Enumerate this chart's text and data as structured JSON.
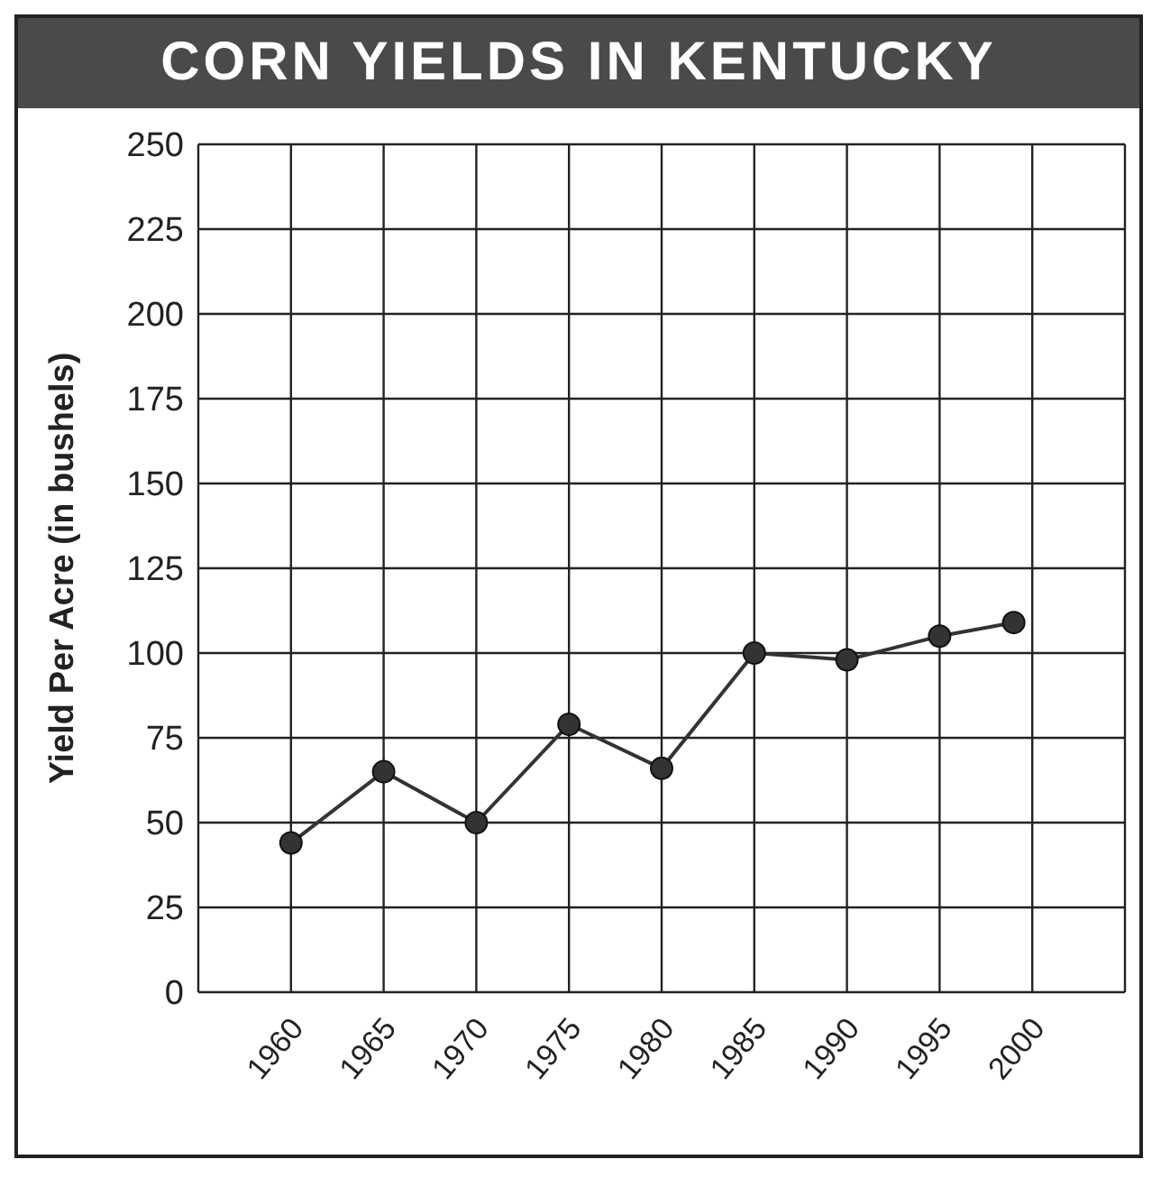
{
  "chart_data": {
    "type": "line",
    "title": "CORN YIELDS IN KENTUCKY",
    "ylabel": "Yield Per Acre  (in bushels)",
    "x": [
      1960,
      1965,
      1970,
      1975,
      1980,
      1985,
      1990,
      1995,
      1999
    ],
    "series": [
      {
        "color": "#333333",
        "values": [
          44,
          65,
          50,
          79,
          66,
          100,
          98,
          105,
          109
        ]
      }
    ],
    "xlim": [
      1955,
      2005
    ],
    "xticks": [
      1960,
      1965,
      1970,
      1975,
      1980,
      1985,
      1990,
      1995,
      2000
    ],
    "ylim": [
      0,
      250
    ],
    "yticks": [
      0,
      25,
      50,
      75,
      100,
      125,
      150,
      175,
      200,
      225,
      250
    ],
    "grid": true,
    "marker": "circle",
    "line_style": "solid",
    "legend": false
  }
}
